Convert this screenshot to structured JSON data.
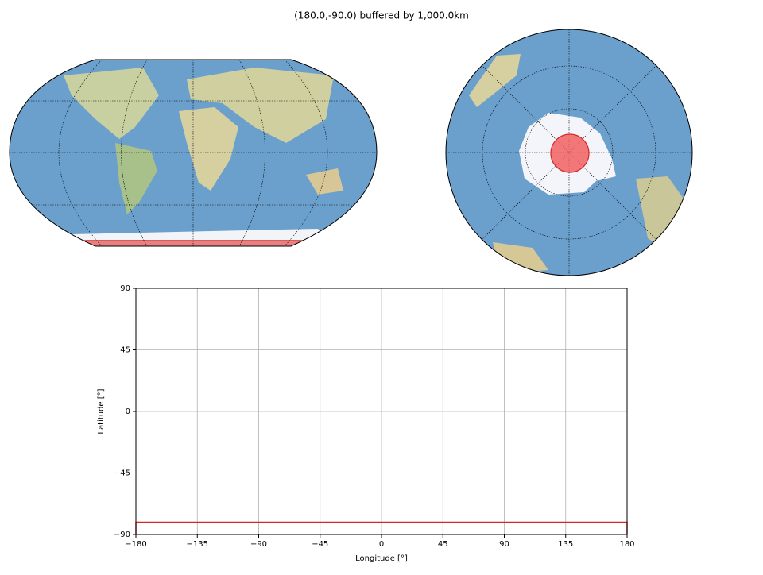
{
  "chart_data": {
    "type": "line",
    "title": "(180.0,-90.0) buffered by 1,000.0km",
    "x_label": "Longitude [°]",
    "y_label": "Latitude [°]",
    "series": [
      {
        "color": "#d62728",
        "x": [
          -180,
          -180,
          180,
          180
        ],
        "values": [
          -90,
          -81,
          -81,
          -90
        ]
      }
    ],
    "xlim": [
      -180,
      180
    ],
    "ylim": [
      -90,
      90
    ],
    "xticks": [
      {
        "value": -180,
        "label": "−180"
      },
      {
        "value": -135,
        "label": "−135"
      },
      {
        "value": -90,
        "label": "−90"
      },
      {
        "value": -45,
        "label": "−45"
      },
      0,
      45,
      90,
      135,
      180
    ],
    "yticks": [
      {
        "value": -90,
        "label": "−90"
      },
      {
        "value": -45,
        "label": "−45"
      },
      0,
      45,
      90
    ],
    "grid": true
  }
}
